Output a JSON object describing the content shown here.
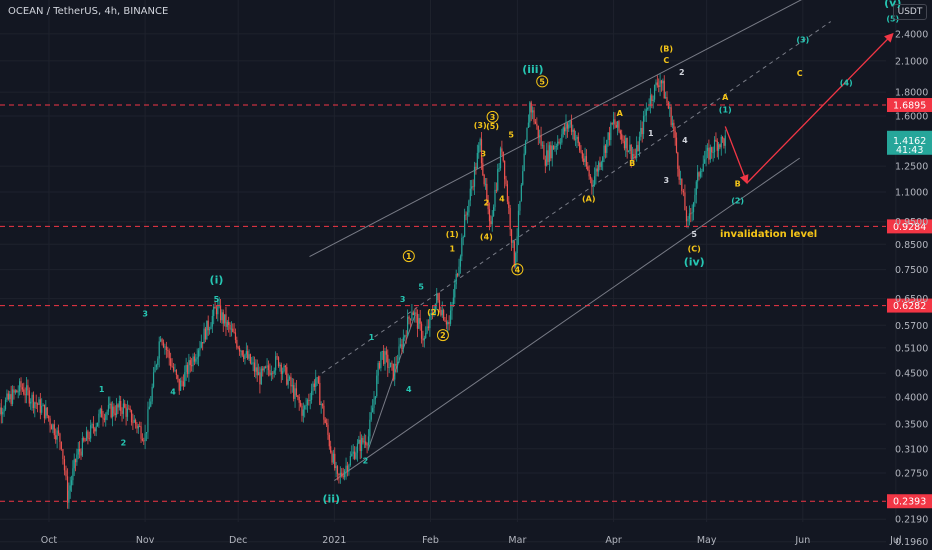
{
  "header": {
    "title": "OCEAN / TetherUS, 4h, BINANCE",
    "currency_button": "USDT"
  },
  "colors": {
    "background": "#131722",
    "up": "#26a69a",
    "down": "#ef5350",
    "level_line": "#f23645",
    "wave_green": "#26c6b3",
    "wave_yellow": "#f5c518",
    "projection": "#f23645",
    "channel": "#787b86"
  },
  "chart_data": {
    "type": "candlestick",
    "title": "OCEAN / TetherUS, 4h, BINANCE",
    "y_scale": "log",
    "ylim": [
      0.19,
      2.85
    ],
    "x_range": [
      "2020-09-12",
      "2021-07-12"
    ],
    "y_ticks": [
      "2.4000",
      "2.1000",
      "1.8000",
      "1.6000",
      "1.2500",
      "1.1000",
      "0.9500",
      "0.8500",
      "0.7500",
      "0.6500",
      "0.5700",
      "0.5100",
      "0.4500",
      "0.4000",
      "0.3500",
      "0.3100",
      "0.2750",
      "0.2190",
      "0.1960"
    ],
    "x_ticks": [
      "Oct",
      "Nov",
      "Dec",
      "2021",
      "Feb",
      "Mar",
      "Apr",
      "May",
      "Jun",
      "Jul"
    ],
    "price_path": [
      [
        "2020-09-12",
        0.36
      ],
      [
        "2020-09-22",
        0.42
      ],
      [
        "2020-09-30",
        0.37
      ],
      [
        "2020-10-05",
        0.32
      ],
      [
        "2020-10-07",
        0.245
      ],
      [
        "2020-10-10",
        0.3
      ],
      [
        "2020-10-18",
        0.37
      ],
      [
        "2020-10-25",
        0.38
      ],
      [
        "2020-11-01",
        0.33
      ],
      [
        "2020-11-06",
        0.55
      ],
      [
        "2020-11-12",
        0.42
      ],
      [
        "2020-11-24",
        0.62
      ],
      [
        "2020-12-01",
        0.52
      ],
      [
        "2020-12-08",
        0.44
      ],
      [
        "2020-12-14",
        0.48
      ],
      [
        "2020-12-22",
        0.37
      ],
      [
        "2020-12-26",
        0.44
      ],
      [
        "2021-01-02",
        0.265
      ],
      [
        "2021-01-08",
        0.31
      ],
      [
        "2021-01-12",
        0.33
      ],
      [
        "2021-01-16",
        0.5
      ],
      [
        "2021-01-20",
        0.45
      ],
      [
        "2021-01-26",
        0.62
      ],
      [
        "2021-01-30",
        0.53
      ],
      [
        "2021-02-03",
        0.65
      ],
      [
        "2021-02-07",
        0.57
      ],
      [
        "2021-02-12",
        0.95
      ],
      [
        "2021-02-17",
        1.4
      ],
      [
        "2021-02-20",
        0.92
      ],
      [
        "2021-02-24",
        1.38
      ],
      [
        "2021-02-28",
        0.78
      ],
      [
        "2021-03-05",
        1.7
      ],
      [
        "2021-03-10",
        1.3
      ],
      [
        "2021-03-18",
        1.55
      ],
      [
        "2021-03-25",
        1.15
      ],
      [
        "2021-04-01",
        1.55
      ],
      [
        "2021-04-08",
        1.3
      ],
      [
        "2021-04-12",
        1.7
      ],
      [
        "2021-04-16",
        1.93
      ],
      [
        "2021-04-20",
        1.55
      ],
      [
        "2021-04-23",
        1.1
      ],
      [
        "2021-04-25",
        0.93
      ],
      [
        "2021-04-29",
        1.25
      ],
      [
        "2021-05-04",
        1.4
      ],
      [
        "2021-05-07",
        1.42
      ]
    ],
    "levels": [
      {
        "price": 1.6895,
        "label": "1.6895"
      },
      {
        "price": 0.9284,
        "label": "0.9284"
      },
      {
        "price": 0.6282,
        "label": "0.6282"
      },
      {
        "price": 0.2393,
        "label": "0.2393"
      }
    ],
    "current_price": {
      "price": 1.4162,
      "label": "1.4162",
      "countdown": "41:43"
    },
    "channel": [
      {
        "from": [
          "2020-12-24",
          0.8
        ],
        "to": [
          "2021-06-01",
          2.85
        ]
      },
      {
        "from": [
          "2021-01-01",
          0.265
        ],
        "to": [
          "2021-05-31",
          1.3
        ]
      }
    ],
    "projection": [
      [
        "2021-05-07",
        1.52
      ],
      [
        "2021-05-14",
        1.15
      ],
      [
        "2021-06-30",
        2.4
      ]
    ],
    "annotation": {
      "text": "invalidation level"
    },
    "wave_labels": [
      {
        "text": "(i)",
        "at": [
          "2020-11-24",
          0.7
        ],
        "color": "wave_green",
        "size": "big"
      },
      {
        "text": "(ii)",
        "at": [
          "2020-12-31",
          0.238
        ],
        "color": "wave_green",
        "size": "big"
      },
      {
        "text": "(iii)",
        "at": [
          "2021-03-06",
          1.98
        ],
        "color": "wave_green",
        "size": "big"
      },
      {
        "text": "(iv)",
        "at": [
          "2021-04-27",
          0.765
        ],
        "color": "wave_green",
        "size": "big"
      },
      {
        "text": "(v)",
        "at": [
          "2021-06-30",
          2.75
        ],
        "color": "wave_green",
        "size": "big"
      },
      {
        "text": "5",
        "at": [
          "2020-11-24",
          0.64
        ],
        "color": "wave_green"
      },
      {
        "text": "3",
        "at": [
          "2020-11-01",
          0.595
        ],
        "color": "wave_green"
      },
      {
        "text": "4",
        "at": [
          "2020-11-10",
          0.405
        ],
        "color": "wave_green"
      },
      {
        "text": "1",
        "at": [
          "2020-10-18",
          0.41
        ],
        "color": "wave_green"
      },
      {
        "text": "2",
        "at": [
          "2020-10-25",
          0.315
        ],
        "color": "wave_green"
      },
      {
        "text": "1",
        "at": [
          "2021-01-13",
          0.53
        ],
        "color": "wave_green"
      },
      {
        "text": "2",
        "at": [
          "2021-01-11",
          0.288
        ],
        "color": "wave_green"
      },
      {
        "text": "3",
        "at": [
          "2021-01-23",
          0.64
        ],
        "color": "wave_green"
      },
      {
        "text": "4",
        "at": [
          "2021-01-25",
          0.41
        ],
        "color": "wave_green"
      },
      {
        "text": "5",
        "at": [
          "2021-01-29",
          0.68
        ],
        "color": "wave_green"
      },
      {
        "text": "(1)",
        "at": [
          "2021-05-07",
          1.63
        ],
        "color": "wave_green"
      },
      {
        "text": "(2)",
        "at": [
          "2021-05-11",
          1.04
        ],
        "color": "wave_green"
      },
      {
        "text": "(3)",
        "at": [
          "2021-06-01",
          2.3
        ],
        "color": "wave_green"
      },
      {
        "text": "(4)",
        "at": [
          "2021-06-15",
          1.86
        ],
        "color": "wave_green"
      },
      {
        "text": "(5)",
        "at": [
          "2021-06-30",
          2.55
        ],
        "color": "wave_green"
      },
      {
        "text": "1",
        "at": [
          "2021-01-25",
          0.79
        ],
        "color": "wave_yellow",
        "circled": true
      },
      {
        "text": "2",
        "at": [
          "2021-02-05",
          0.535
        ],
        "color": "wave_yellow",
        "circled": true
      },
      {
        "text": "3",
        "at": [
          "2021-02-21",
          1.57
        ],
        "color": "wave_yellow",
        "circled": true
      },
      {
        "text": "4",
        "at": [
          "2021-02-29",
          0.74
        ],
        "color": "wave_yellow",
        "circled": true
      },
      {
        "text": "5",
        "at": [
          "2021-03-09",
          1.87
        ],
        "color": "wave_yellow",
        "circled": true
      },
      {
        "text": "(1)",
        "at": [
          "2021-02-08",
          0.88
        ],
        "color": "wave_yellow"
      },
      {
        "text": "(2)",
        "at": [
          "2021-02-02",
          0.6
        ],
        "color": "wave_yellow"
      },
      {
        "text": "(3)",
        "at": [
          "2021-02-17",
          1.51
        ],
        "color": "wave_yellow"
      },
      {
        "text": "(4)",
        "at": [
          "2021-02-19",
          0.87
        ],
        "color": "wave_yellow"
      },
      {
        "text": "(5)",
        "at": [
          "2021-02-21",
          1.5
        ],
        "color": "wave_yellow"
      },
      {
        "text": "1",
        "at": [
          "2021-02-08",
          0.82
        ],
        "color": "wave_yellow"
      },
      {
        "text": "2",
        "at": [
          "2021-02-19",
          1.03
        ],
        "color": "wave_yellow"
      },
      {
        "text": "3",
        "at": [
          "2021-02-18",
          1.31
        ],
        "color": "wave_yellow"
      },
      {
        "text": "4",
        "at": [
          "2021-02-24",
          1.05
        ],
        "color": "wave_yellow"
      },
      {
        "text": "5",
        "at": [
          "2021-02-27",
          1.44
        ],
        "color": "wave_yellow"
      },
      {
        "text": "(A)",
        "at": [
          "2021-03-24",
          1.05
        ],
        "color": "wave_yellow"
      },
      {
        "text": "(B)",
        "at": [
          "2021-04-18",
          2.2
        ],
        "color": "wave_yellow"
      },
      {
        "text": "(C)",
        "at": [
          "2021-04-27",
          0.82
        ],
        "color": "wave_yellow"
      },
      {
        "text": "A",
        "at": [
          "2021-04-03",
          1.6
        ],
        "color": "wave_yellow"
      },
      {
        "text": "B",
        "at": [
          "2021-04-07",
          1.25
        ],
        "color": "wave_yellow"
      },
      {
        "text": "C",
        "at": [
          "2021-04-18",
          2.08
        ],
        "color": "wave_yellow"
      },
      {
        "text": "A",
        "at": [
          "2021-05-07",
          1.73
        ],
        "color": "wave_yellow"
      },
      {
        "text": "B",
        "at": [
          "2021-05-11",
          1.13
        ],
        "color": "wave_yellow"
      },
      {
        "text": "C",
        "at": [
          "2021-05-31",
          1.95
        ],
        "color": "wave_yellow"
      },
      {
        "text": "1",
        "at": [
          "2021-04-13",
          1.45
        ],
        "color": "wave_light"
      },
      {
        "text": "2",
        "at": [
          "2021-04-23",
          1.96
        ],
        "color": "wave_light"
      },
      {
        "text": "3",
        "at": [
          "2021-04-18",
          1.15
        ],
        "color": "wave_light"
      },
      {
        "text": "4",
        "at": [
          "2021-04-24",
          1.4
        ],
        "color": "wave_light"
      },
      {
        "text": "5",
        "at": [
          "2021-04-27",
          0.88
        ],
        "color": "wave_light"
      }
    ]
  }
}
